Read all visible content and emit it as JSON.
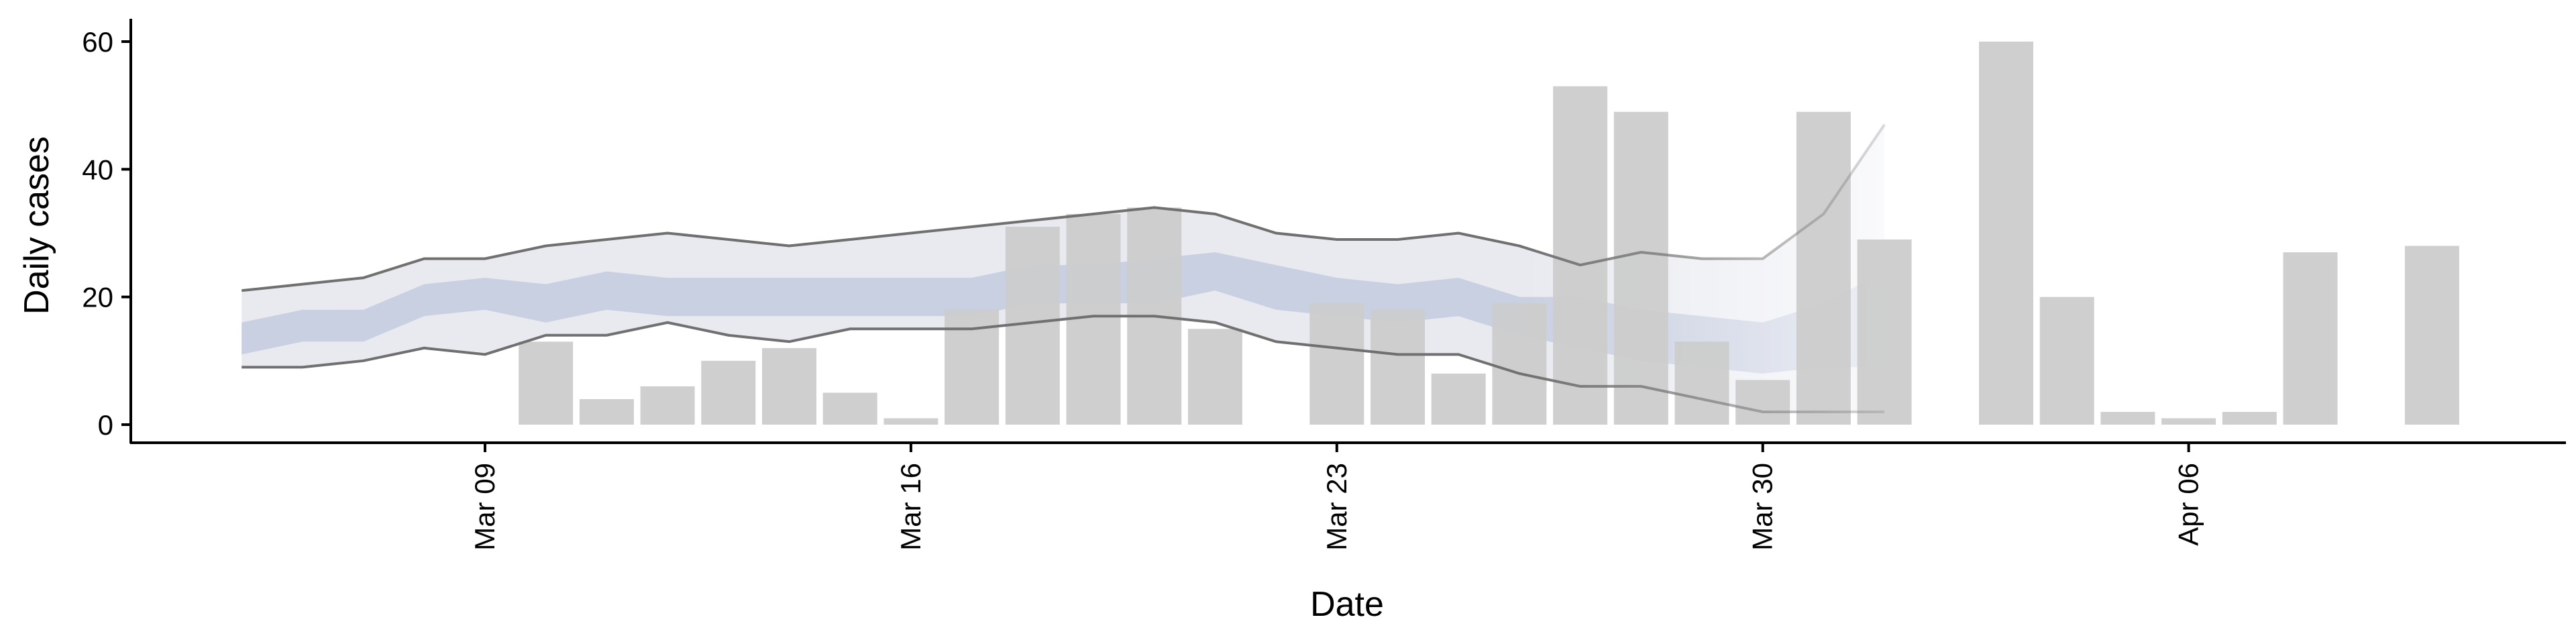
{
  "chart_data": {
    "type": "bar",
    "xlabel": "Date",
    "ylabel": "Daily cases",
    "ylim": [
      0,
      63
    ],
    "x_ticks": [
      "Mar 09",
      "Mar 16",
      "Mar 23",
      "Mar 30",
      "Apr 06"
    ],
    "y_ticks": [
      0,
      20,
      40,
      60
    ],
    "grid": false,
    "colors": {
      "bars": "#cccccc",
      "outer_band": "#e8eaf0",
      "inner_band": "#c6cde0",
      "bound_lines": "#707070"
    },
    "series": [
      {
        "type": "bar",
        "x": [
          "2020-03-10",
          "2020-03-11",
          "2020-03-12",
          "2020-03-13",
          "2020-03-14",
          "2020-03-15",
          "2020-03-16",
          "2020-03-17",
          "2020-03-18",
          "2020-03-19",
          "2020-03-20",
          "2020-03-21",
          "2020-03-23",
          "2020-03-24",
          "2020-03-25",
          "2020-03-26",
          "2020-03-27",
          "2020-03-28",
          "2020-03-29",
          "2020-03-30",
          "2020-03-31",
          "2020-04-01",
          "2020-04-03",
          "2020-04-04",
          "2020-04-05",
          "2020-04-06",
          "2020-04-07",
          "2020-04-08",
          "2020-04-10"
        ],
        "values": [
          13,
          4,
          6,
          10,
          12,
          5,
          1,
          18,
          31,
          33,
          34,
          15,
          19,
          18,
          8,
          19,
          53,
          49,
          13,
          7,
          49,
          29,
          60,
          20,
          2,
          1,
          2,
          27,
          28
        ]
      },
      {
        "type": "band",
        "x": [
          "2020-03-05",
          "2020-03-06",
          "2020-03-07",
          "2020-03-08",
          "2020-03-09",
          "2020-03-10",
          "2020-03-11",
          "2020-03-12",
          "2020-03-13",
          "2020-03-14",
          "2020-03-15",
          "2020-03-16",
          "2020-03-17",
          "2020-03-18",
          "2020-03-19",
          "2020-03-20",
          "2020-03-21",
          "2020-03-22",
          "2020-03-23",
          "2020-03-24",
          "2020-03-25",
          "2020-03-26",
          "2020-03-27",
          "2020-03-28",
          "2020-03-29",
          "2020-03-30",
          "2020-03-31",
          "2020-04-01"
        ],
        "lower": [
          9,
          9,
          10,
          12,
          11,
          14,
          14,
          16,
          14,
          13,
          15,
          15,
          15,
          16,
          17,
          17,
          16,
          13,
          12,
          11,
          11,
          8,
          6,
          6,
          4,
          2,
          2,
          2
        ],
        "upper": [
          21,
          22,
          23,
          26,
          26,
          28,
          29,
          30,
          29,
          28,
          29,
          30,
          31,
          32,
          33,
          34,
          33,
          30,
          29,
          29,
          30,
          28,
          25,
          27,
          26,
          26,
          33,
          47
        ]
      },
      {
        "type": "band",
        "x": [
          "2020-03-05",
          "2020-03-06",
          "2020-03-07",
          "2020-03-08",
          "2020-03-09",
          "2020-03-10",
          "2020-03-11",
          "2020-03-12",
          "2020-03-13",
          "2020-03-14",
          "2020-03-15",
          "2020-03-16",
          "2020-03-17",
          "2020-03-18",
          "2020-03-19",
          "2020-03-20",
          "2020-03-21",
          "2020-03-22",
          "2020-03-23",
          "2020-03-24",
          "2020-03-25",
          "2020-03-26",
          "2020-03-27",
          "2020-03-28",
          "2020-03-29",
          "2020-03-30",
          "2020-03-31",
          "2020-04-01"
        ],
        "lower": [
          11,
          13,
          13,
          17,
          18,
          16,
          18,
          17,
          17,
          17,
          17,
          17,
          17,
          19,
          19,
          19,
          21,
          18,
          17,
          16,
          17,
          14,
          12,
          10,
          9,
          8,
          9,
          9
        ],
        "upper": [
          16,
          18,
          18,
          22,
          23,
          22,
          24,
          23,
          23,
          23,
          23,
          23,
          23,
          25,
          25,
          26,
          27,
          25,
          23,
          22,
          23,
          20,
          20,
          18,
          17,
          16,
          19,
          24
        ]
      }
    ]
  }
}
